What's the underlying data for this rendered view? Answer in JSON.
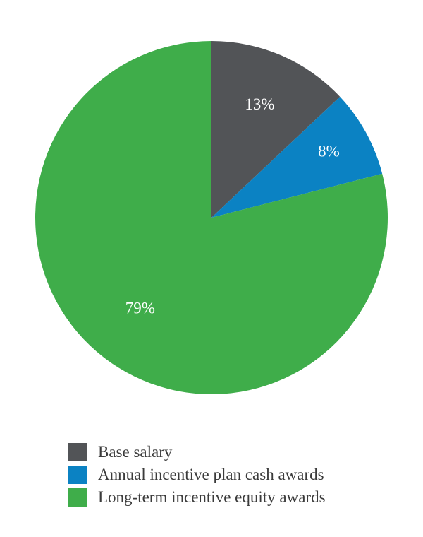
{
  "chart_data": {
    "type": "pie",
    "title": "",
    "categories": [
      "Base salary",
      "Annual incentive plan cash awards",
      "Long-term incentive equity awards"
    ],
    "values": [
      13,
      8,
      79
    ],
    "labels": [
      "13%",
      "8%",
      "79%"
    ],
    "colors": [
      "#525457",
      "#0b82c3",
      "#3fad4a"
    ],
    "start_angle": "12 o'clock",
    "direction": "clockwise",
    "legend_position": "bottom"
  },
  "legend": {
    "items": [
      {
        "label": "Base salary",
        "color": "#525457"
      },
      {
        "label": "Annual incentive plan cash awards",
        "color": "#0b82c3"
      },
      {
        "label": "Long-term incentive equity awards",
        "color": "#3fad4a"
      }
    ]
  }
}
